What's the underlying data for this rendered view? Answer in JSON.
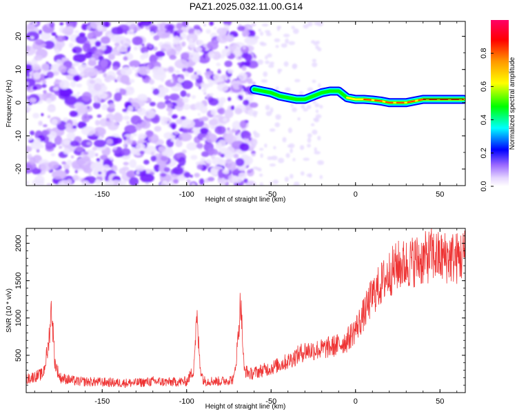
{
  "title": "PAZ1.2025.032.11.00.G14",
  "chart_data": [
    {
      "type": "heatmap",
      "xlabel": "Height of straight line (km)",
      "ylabel": "Frequency (Hz)",
      "xlim": [
        -195,
        65
      ],
      "ylim": [
        -25,
        24.5
      ],
      "x_ticks": [
        -150,
        -100,
        -50,
        0,
        50
      ],
      "y_ticks": [
        -20,
        -10,
        0,
        10,
        20
      ],
      "colorbar": {
        "label": "Normalized spectral amplitude",
        "range": [
          0,
          1
        ],
        "ticks": [
          0.0,
          0.2,
          0.4,
          0.6,
          0.8
        ],
        "colors": [
          "#ffffff",
          "#cc99ff",
          "#6600ff",
          "#0000ff",
          "#00ffff",
          "#00ff00",
          "#ffff00",
          "#ff8800",
          "#ff0000",
          "#ff0066"
        ]
      },
      "noise_region": {
        "x_range": [
          -195,
          -60
        ],
        "amplitude": [
          0.05,
          0.2
        ]
      },
      "signal_line": {
        "x": [
          -60,
          -55,
          -50,
          -45,
          -40,
          -35,
          -30,
          -25,
          -20,
          -15,
          -10,
          -5,
          0,
          5,
          10,
          15,
          20,
          25,
          30,
          35,
          40,
          45,
          50,
          55,
          60,
          64
        ],
        "freq": [
          4,
          3.5,
          3,
          2,
          1.5,
          1,
          1,
          2,
          3,
          3.5,
          3.5,
          1.5,
          1,
          1,
          0.8,
          0.5,
          0,
          0,
          0,
          0.5,
          1,
          1,
          1,
          1,
          1,
          1
        ]
      }
    },
    {
      "type": "line",
      "xlabel": "Height of straight line (km)",
      "ylabel": "SNR (10 * v/v)",
      "xlim": [
        -195,
        65
      ],
      "ylim": [
        0,
        2200
      ],
      "x_ticks": [
        -150,
        -100,
        -50,
        0,
        50
      ],
      "y_ticks": [
        500,
        1000,
        1500,
        2000
      ],
      "color": "#ee3333",
      "x": [
        -195,
        -185,
        -182,
        -180,
        -178,
        -175,
        -165,
        -150,
        -140,
        -130,
        -120,
        -110,
        -100,
        -96,
        -94,
        -92,
        -90,
        -80,
        -72,
        -70,
        -68,
        -66,
        -62,
        -55,
        -50,
        -40,
        -30,
        -20,
        -10,
        -5,
        0,
        5,
        10,
        15,
        20,
        25,
        30,
        35,
        40,
        45,
        50,
        55,
        60,
        65
      ],
      "y": [
        180,
        250,
        600,
        1150,
        400,
        200,
        150,
        140,
        130,
        130,
        150,
        140,
        150,
        300,
        1000,
        350,
        160,
        150,
        180,
        600,
        1250,
        300,
        250,
        300,
        330,
        420,
        560,
        580,
        640,
        700,
        850,
        1050,
        1300,
        1450,
        1600,
        1700,
        1720,
        1770,
        1780,
        1850,
        1800,
        1820,
        1800,
        1850
      ]
    }
  ]
}
